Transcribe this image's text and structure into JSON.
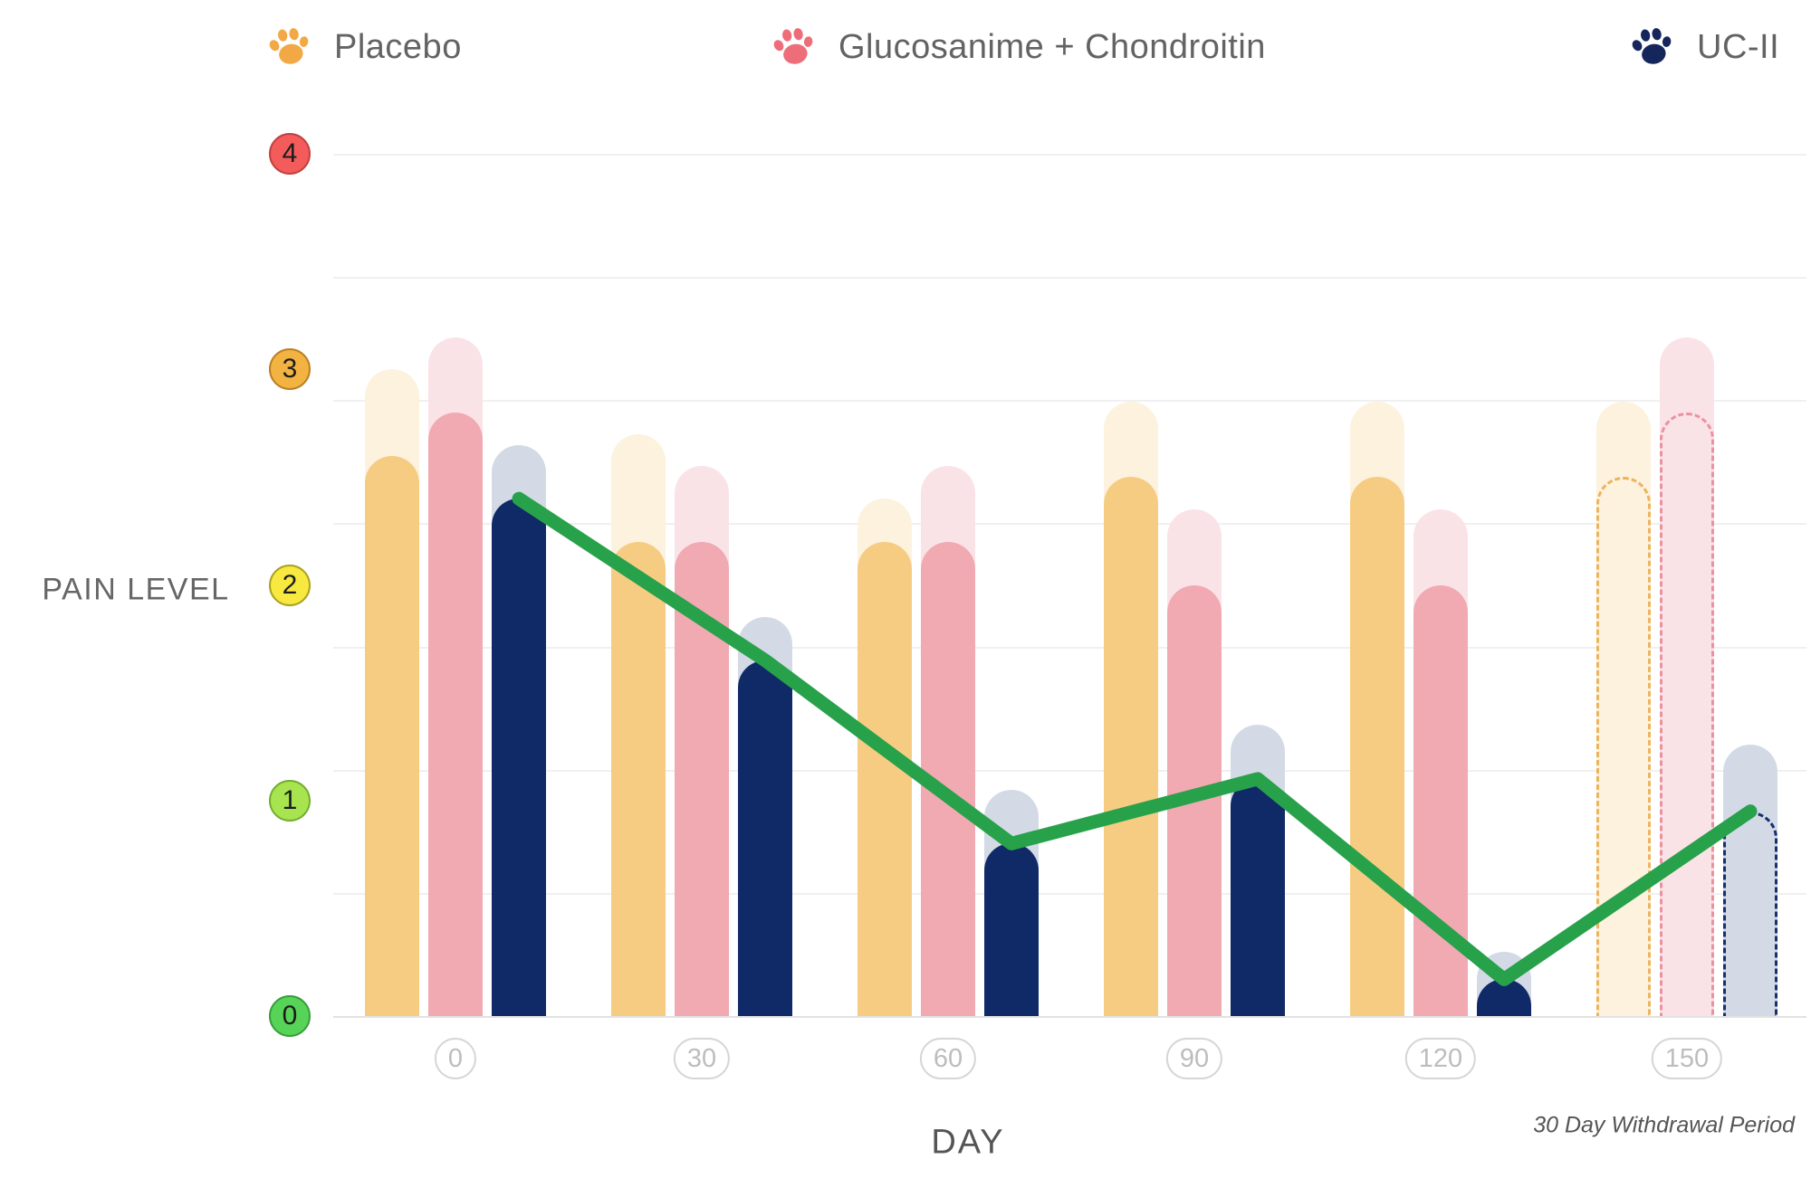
{
  "legend": [
    {
      "id": "placebo",
      "label": "Placebo",
      "paw_color": "#F2A844"
    },
    {
      "id": "glucosanime-chondroitin",
      "label": "Glucosanime + Chondroitin",
      "paw_color": "#ED6E79"
    },
    {
      "id": "uc-ii",
      "label": "UC-II",
      "paw_color": "#14265C"
    }
  ],
  "y_axis": {
    "title": "PAIN LEVEL",
    "ticks": [
      {
        "value": 4,
        "fill": "#F45B5B",
        "border": "#C24040"
      },
      {
        "value": 3,
        "fill": "#F2B342",
        "border": "#BC7F22"
      },
      {
        "value": 2,
        "fill": "#F7E93F",
        "border": "#ABA020"
      },
      {
        "value": 1,
        "fill": "#A7E44F",
        "border": "#74AC30"
      },
      {
        "value": 0,
        "fill": "#57D457",
        "border": "#379E3B"
      }
    ]
  },
  "x_axis": {
    "title": "DAY",
    "ticks": [
      "0",
      "30",
      "60",
      "90",
      "120",
      "150"
    ]
  },
  "note": "30 Day Withdrawal Period",
  "chart_data": {
    "type": "bar",
    "title": "",
    "xlabel": "DAY",
    "ylabel": "PAIN LEVEL",
    "ylim": [
      0,
      4
    ],
    "categories": [
      0,
      30,
      60,
      90,
      120,
      150
    ],
    "grid": "horizontal, 7 equal intervals between level 4 and level 0",
    "legend_position": "top",
    "last_period_is_withdrawal": true,
    "withdrawal_note": "30 Day Withdrawal Period",
    "series": [
      {
        "name": "Placebo",
        "color": "#F6CC83",
        "halo_color": "#FCF2DE",
        "dash_color": "#EDB45E",
        "values": [
          2.6,
          2.2,
          2.2,
          2.5,
          2.5,
          2.5
        ],
        "halo_values": [
          3.0,
          2.7,
          2.4,
          2.85,
          2.85,
          2.85
        ]
      },
      {
        "name": "Glucosanime + Chondroitin",
        "color": "#F1A9B2",
        "halo_color": "#FAE3E7",
        "dash_color": "#EA93A0",
        "values": [
          2.8,
          2.2,
          2.2,
          2.0,
          2.0,
          2.8
        ],
        "halo_values": [
          3.15,
          2.55,
          2.55,
          2.35,
          2.35,
          3.15
        ]
      },
      {
        "name": "UC-II",
        "color": "#0F2A66",
        "halo_color": "#D3DAE6",
        "dash_color": "#16306E",
        "values": [
          2.4,
          1.65,
          0.8,
          1.1,
          0.17,
          0.95
        ],
        "halo_values": [
          2.65,
          1.85,
          1.05,
          1.35,
          0.3,
          1.26
        ]
      }
    ],
    "trend_line": {
      "follows_series": "UC-II",
      "color": "#28A14B",
      "values": [
        2.4,
        1.65,
        0.8,
        1.1,
        0.17,
        0.95
      ]
    }
  }
}
